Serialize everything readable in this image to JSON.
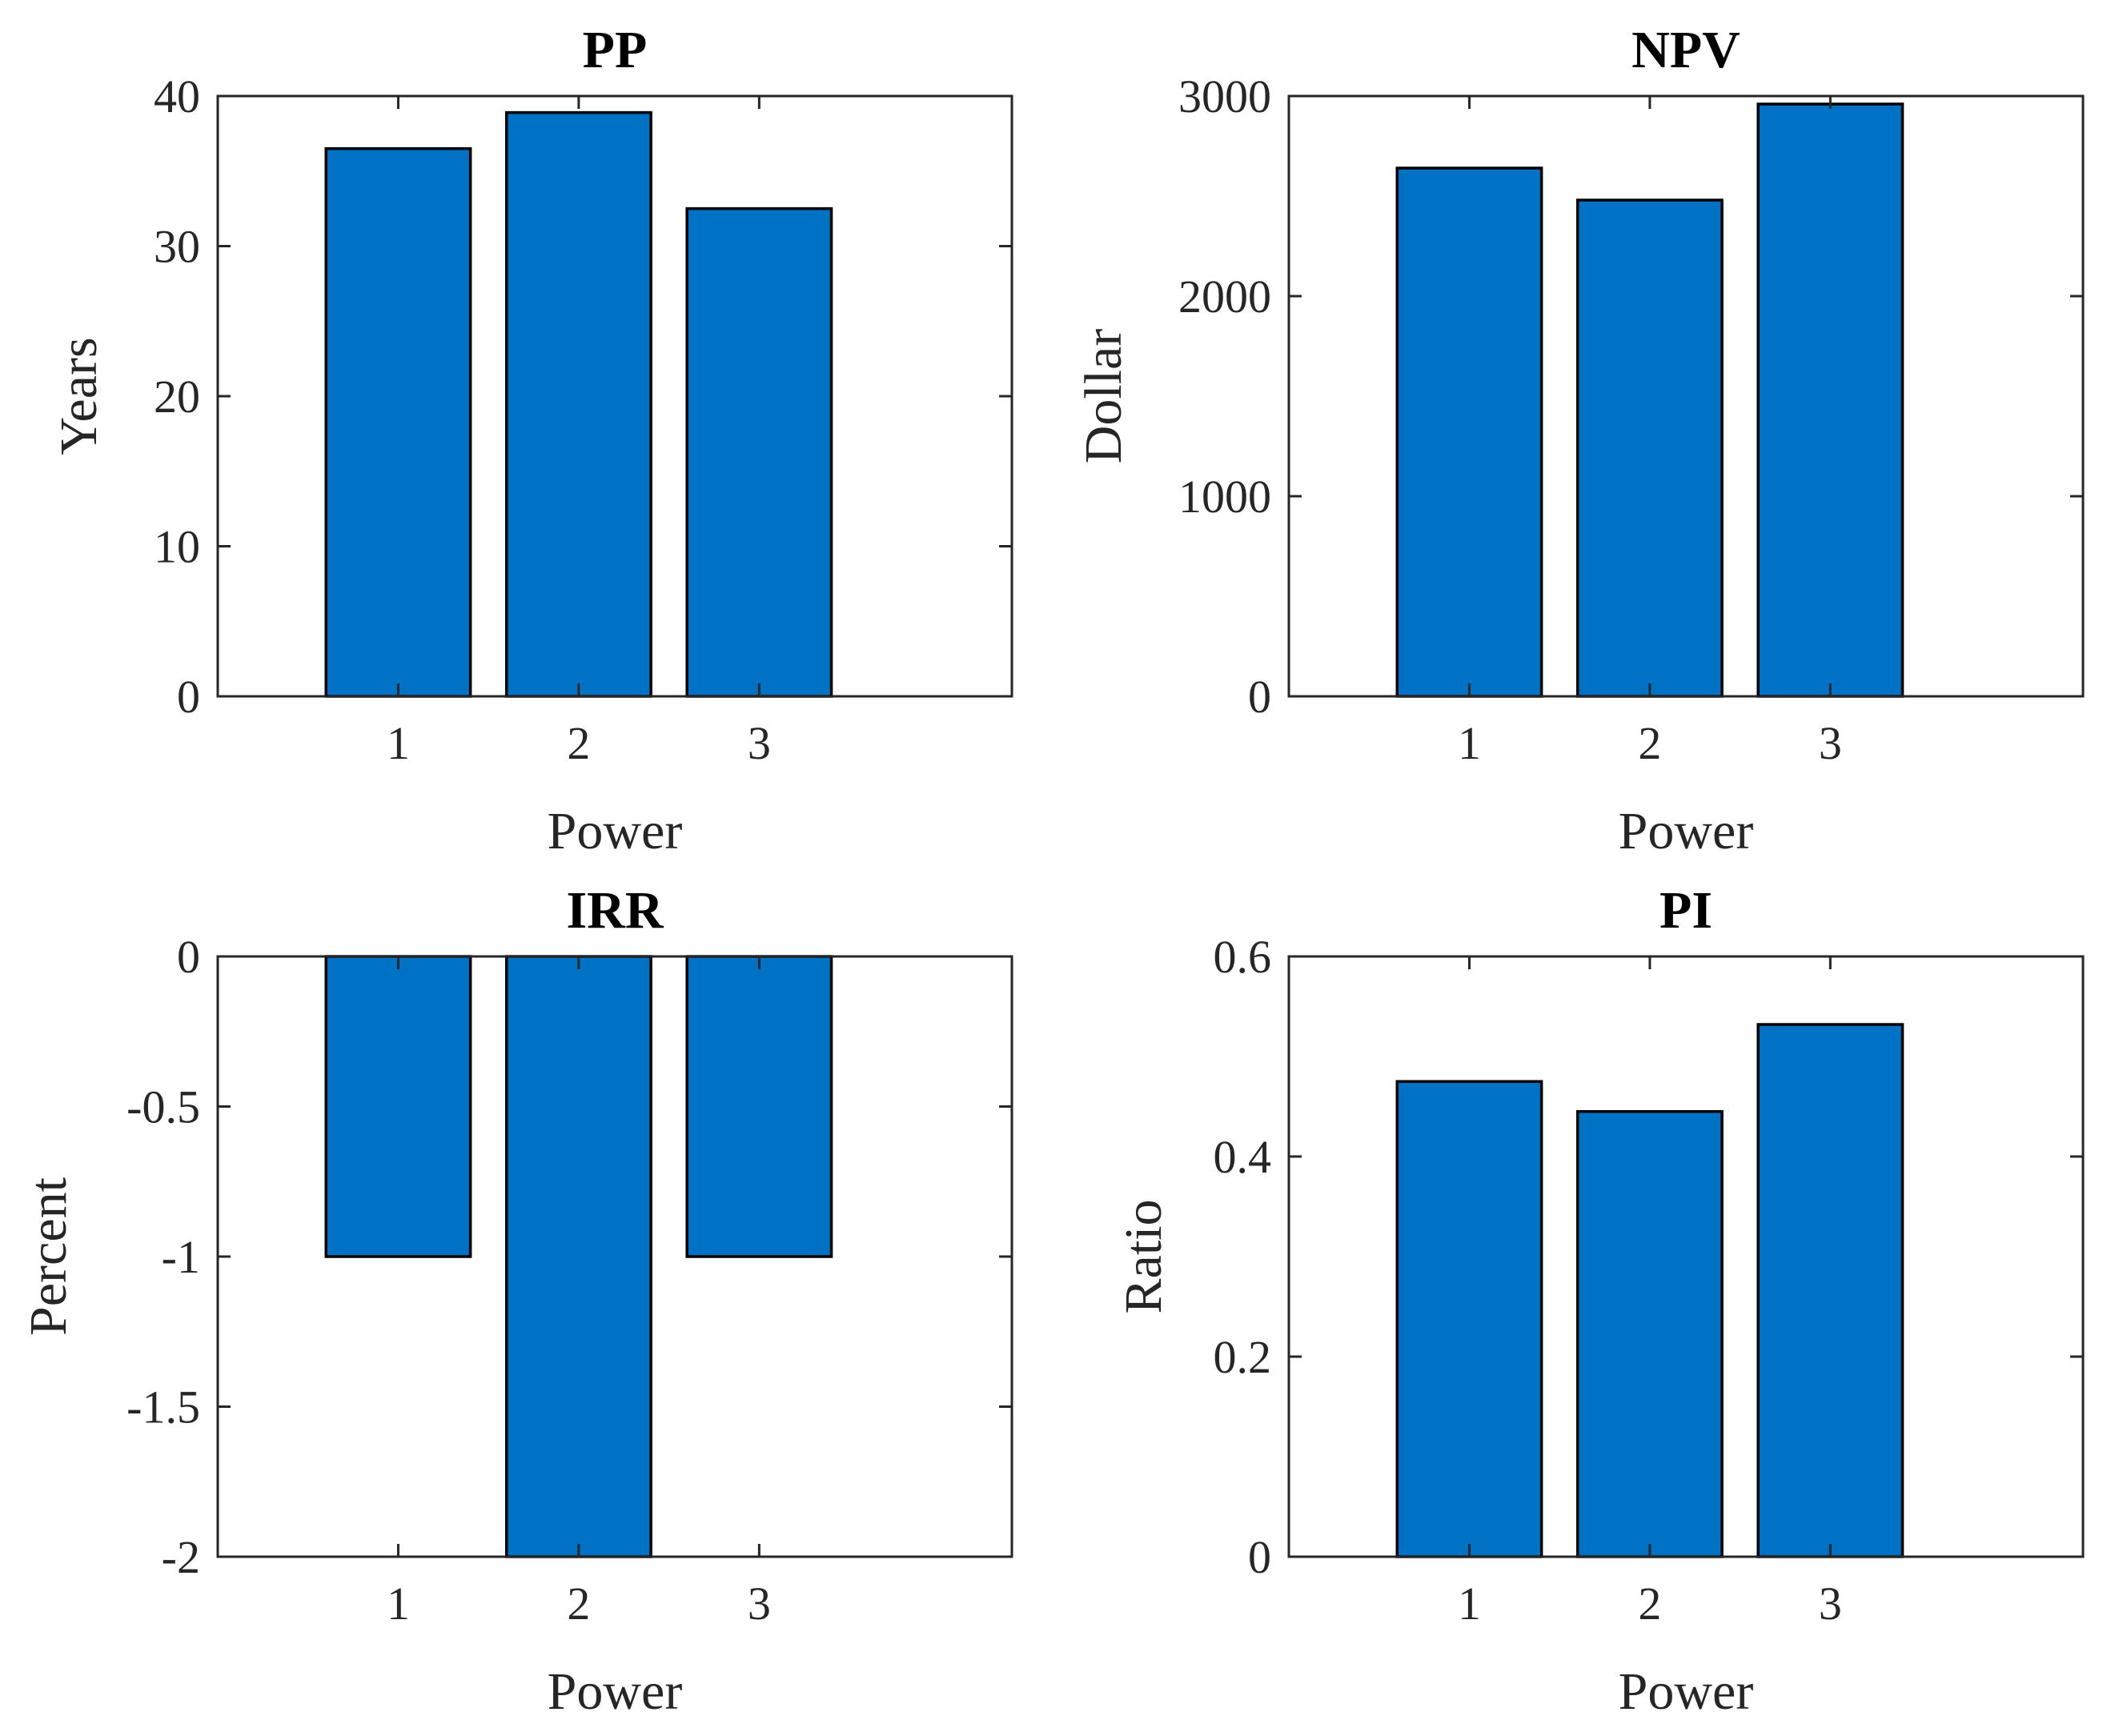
{
  "colors": {
    "bar": "#0072C6",
    "axis": "#262626",
    "title": "#000000"
  },
  "chart_data": [
    {
      "type": "bar",
      "title": "PP",
      "xlabel": "Power",
      "ylabel": "Years",
      "categories": [
        "1",
        "2",
        "3"
      ],
      "values": [
        36.5,
        38.9,
        32.5
      ],
      "xlim": [
        0,
        4.4
      ],
      "ylim": [
        0,
        40
      ],
      "yticks": [
        0,
        10,
        20,
        30,
        40
      ],
      "ytick_labels": [
        "0",
        "10",
        "20",
        "30",
        "40"
      ]
    },
    {
      "type": "bar",
      "title": "NPV",
      "xlabel": "Power",
      "ylabel": "Dollar",
      "categories": [
        "1",
        "2",
        "3"
      ],
      "values": [
        2640,
        2480,
        2960
      ],
      "xlim": [
        0,
        4.4
      ],
      "ylim": [
        0,
        3000
      ],
      "yticks": [
        0,
        1000,
        2000,
        3000
      ],
      "ytick_labels": [
        "0",
        "1000",
        "2000",
        "3000"
      ]
    },
    {
      "type": "bar",
      "title": "IRR",
      "xlabel": "Power",
      "ylabel": "Percent",
      "categories": [
        "1",
        "2",
        "3"
      ],
      "values": [
        -1,
        -2,
        -1
      ],
      "xlim": [
        0,
        4.4
      ],
      "ylim": [
        -2,
        0
      ],
      "yticks": [
        -2,
        -1.5,
        -1,
        -0.5,
        0
      ],
      "ytick_labels": [
        "-2",
        "-1.5",
        "-1",
        "-0.5",
        "0"
      ]
    },
    {
      "type": "bar",
      "title": "PI",
      "xlabel": "Power",
      "ylabel": "Ratio",
      "categories": [
        "1",
        "2",
        "3"
      ],
      "values": [
        0.475,
        0.445,
        0.532
      ],
      "xlim": [
        0,
        4.4
      ],
      "ylim": [
        0,
        0.6
      ],
      "yticks": [
        0,
        0.2,
        0.4,
        0.6
      ],
      "ytick_labels": [
        "0",
        "0.2",
        "0.4",
        "0.6"
      ]
    }
  ]
}
